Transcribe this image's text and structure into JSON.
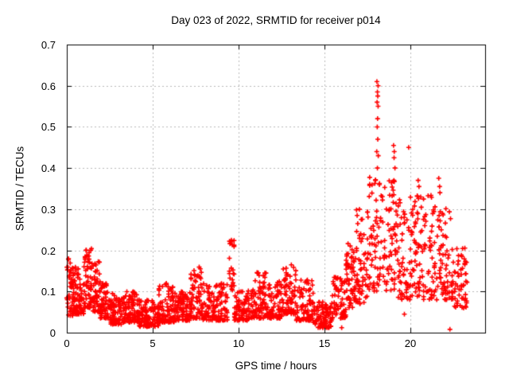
{
  "title": "Day 023 of 2022, SRMTID for receiver p014",
  "chart_data": {
    "type": "scatter",
    "title": "Day 023 of 2022, SRMTID for receiver p014",
    "xlabel": "GPS time / hours",
    "ylabel": "SRMTID / TECUs",
    "xlim": [
      0,
      24.35
    ],
    "ylim": [
      0,
      0.7
    ],
    "x_ticks": [
      {
        "v": 0,
        "label": "0"
      },
      {
        "v": 5,
        "label": "5"
      },
      {
        "v": 10,
        "label": "10"
      },
      {
        "v": 15,
        "label": "15"
      },
      {
        "v": 20,
        "label": "20"
      }
    ],
    "y_ticks": [
      {
        "v": 0.0,
        "label": "0"
      },
      {
        "v": 0.1,
        "label": "0.1"
      },
      {
        "v": 0.2,
        "label": "0.2"
      },
      {
        "v": 0.3,
        "label": "0.3"
      },
      {
        "v": 0.4,
        "label": "0.4"
      },
      {
        "v": 0.5,
        "label": "0.5"
      },
      {
        "v": 0.6,
        "label": "0.6"
      },
      {
        "v": 0.7,
        "label": "0.7"
      }
    ],
    "grid": true,
    "legend": "none",
    "marker": "plus",
    "marker_color": "#ff0000",
    "grid_color": "#b8b8b8",
    "frame_color": "#000000",
    "seed": 20220123,
    "density_segments": [
      {
        "x0": 0.0,
        "x1": 0.35,
        "ymin": 0.04,
        "ymax": 0.18,
        "n": 40,
        "bias": 1.3
      },
      {
        "x0": 0.35,
        "x1": 1.0,
        "ymin": 0.045,
        "ymax": 0.16,
        "n": 85,
        "bias": 1.5
      },
      {
        "x0": 1.0,
        "x1": 1.45,
        "ymin": 0.06,
        "ymax": 0.205,
        "n": 55,
        "bias": 1.6
      },
      {
        "x0": 1.45,
        "x1": 1.95,
        "ymin": 0.05,
        "ymax": 0.18,
        "n": 55,
        "bias": 1.7
      },
      {
        "x0": 1.95,
        "x1": 2.55,
        "ymin": 0.035,
        "ymax": 0.12,
        "n": 60,
        "bias": 1.5
      },
      {
        "x0": 2.55,
        "x1": 3.25,
        "ymin": 0.02,
        "ymax": 0.095,
        "n": 75,
        "bias": 1.4
      },
      {
        "x0": 3.25,
        "x1": 4.2,
        "ymin": 0.025,
        "ymax": 0.1,
        "n": 95,
        "bias": 1.8
      },
      {
        "x0": 4.2,
        "x1": 5.35,
        "ymin": 0.015,
        "ymax": 0.08,
        "n": 115,
        "bias": 1.6
      },
      {
        "x0": 5.35,
        "x1": 6.25,
        "ymin": 0.025,
        "ymax": 0.12,
        "n": 95,
        "bias": 2.0
      },
      {
        "x0": 6.25,
        "x1": 7.2,
        "ymin": 0.03,
        "ymax": 0.1,
        "n": 90,
        "bias": 1.7
      },
      {
        "x0": 7.2,
        "x1": 7.85,
        "ymin": 0.035,
        "ymax": 0.16,
        "n": 65,
        "bias": 1.8
      },
      {
        "x0": 7.85,
        "x1": 9.35,
        "ymin": 0.03,
        "ymax": 0.12,
        "n": 130,
        "bias": 1.9
      },
      {
        "x0": 9.45,
        "x1": 9.75,
        "ymin": 0.1,
        "ymax": 0.225,
        "n": 22,
        "bias": 1.0
      },
      {
        "x0": 9.75,
        "x1": 10.85,
        "ymin": 0.03,
        "ymax": 0.105,
        "n": 95,
        "bias": 1.7
      },
      {
        "x0": 10.85,
        "x1": 11.65,
        "ymin": 0.035,
        "ymax": 0.15,
        "n": 75,
        "bias": 1.9
      },
      {
        "x0": 11.65,
        "x1": 12.55,
        "ymin": 0.035,
        "ymax": 0.13,
        "n": 80,
        "bias": 1.8
      },
      {
        "x0": 12.55,
        "x1": 13.35,
        "ymin": 0.045,
        "ymax": 0.165,
        "n": 75,
        "bias": 1.7
      },
      {
        "x0": 13.35,
        "x1": 14.35,
        "ymin": 0.03,
        "ymax": 0.13,
        "n": 85,
        "bias": 1.8
      },
      {
        "x0": 14.35,
        "x1": 15.45,
        "ymin": 0.012,
        "ymax": 0.075,
        "n": 95,
        "bias": 1.4
      },
      {
        "x0": 15.45,
        "x1": 16.25,
        "ymin": 0.035,
        "ymax": 0.14,
        "n": 65,
        "bias": 1.6
      },
      {
        "x0": 16.25,
        "x1": 16.8,
        "ymin": 0.06,
        "ymax": 0.22,
        "n": 55,
        "bias": 1.4
      },
      {
        "x0": 16.8,
        "x1": 17.55,
        "ymin": 0.07,
        "ymax": 0.3,
        "n": 65,
        "bias": 1.5
      },
      {
        "x0": 17.55,
        "x1": 18.35,
        "ymin": 0.1,
        "ymax": 0.38,
        "n": 60,
        "bias": 1.3
      },
      {
        "x0": 18.35,
        "x1": 19.25,
        "ymin": 0.1,
        "ymax": 0.37,
        "n": 65,
        "bias": 1.2
      },
      {
        "x0": 19.25,
        "x1": 20.25,
        "ymin": 0.08,
        "ymax": 0.33,
        "n": 75,
        "bias": 1.3
      },
      {
        "x0": 20.25,
        "x1": 21.35,
        "ymin": 0.08,
        "ymax": 0.34,
        "n": 80,
        "bias": 1.3
      },
      {
        "x0": 21.35,
        "x1": 22.35,
        "ymin": 0.08,
        "ymax": 0.31,
        "n": 70,
        "bias": 1.4
      },
      {
        "x0": 22.35,
        "x1": 23.3,
        "ymin": 0.06,
        "ymax": 0.21,
        "n": 65,
        "bias": 1.4
      }
    ],
    "outliers": [
      {
        "x": 18.05,
        "y": 0.61
      },
      {
        "x": 18.12,
        "y": 0.6
      },
      {
        "x": 18.08,
        "y": 0.585
      },
      {
        "x": 18.1,
        "y": 0.575
      },
      {
        "x": 18.06,
        "y": 0.56
      },
      {
        "x": 18.12,
        "y": 0.55
      },
      {
        "x": 18.09,
        "y": 0.52
      },
      {
        "x": 18.07,
        "y": 0.5
      },
      {
        "x": 18.1,
        "y": 0.47
      },
      {
        "x": 18.04,
        "y": 0.44
      },
      {
        "x": 18.13,
        "y": 0.43
      },
      {
        "x": 18.08,
        "y": 0.4
      },
      {
        "x": 19.02,
        "y": 0.455
      },
      {
        "x": 19.06,
        "y": 0.44
      },
      {
        "x": 19.05,
        "y": 0.425
      },
      {
        "x": 19.1,
        "y": 0.4
      },
      {
        "x": 19.04,
        "y": 0.37
      },
      {
        "x": 19.9,
        "y": 0.45
      },
      {
        "x": 21.65,
        "y": 0.375
      },
      {
        "x": 21.7,
        "y": 0.355
      },
      {
        "x": 21.72,
        "y": 0.34
      },
      {
        "x": 20.45,
        "y": 0.37
      },
      {
        "x": 20.5,
        "y": 0.355
      },
      {
        "x": 1.12,
        "y": 0.2
      },
      {
        "x": 9.58,
        "y": 0.225
      },
      {
        "x": 16.0,
        "y": 0.012
      },
      {
        "x": 19.65,
        "y": 0.045
      },
      {
        "x": 22.3,
        "y": 0.008
      }
    ]
  }
}
